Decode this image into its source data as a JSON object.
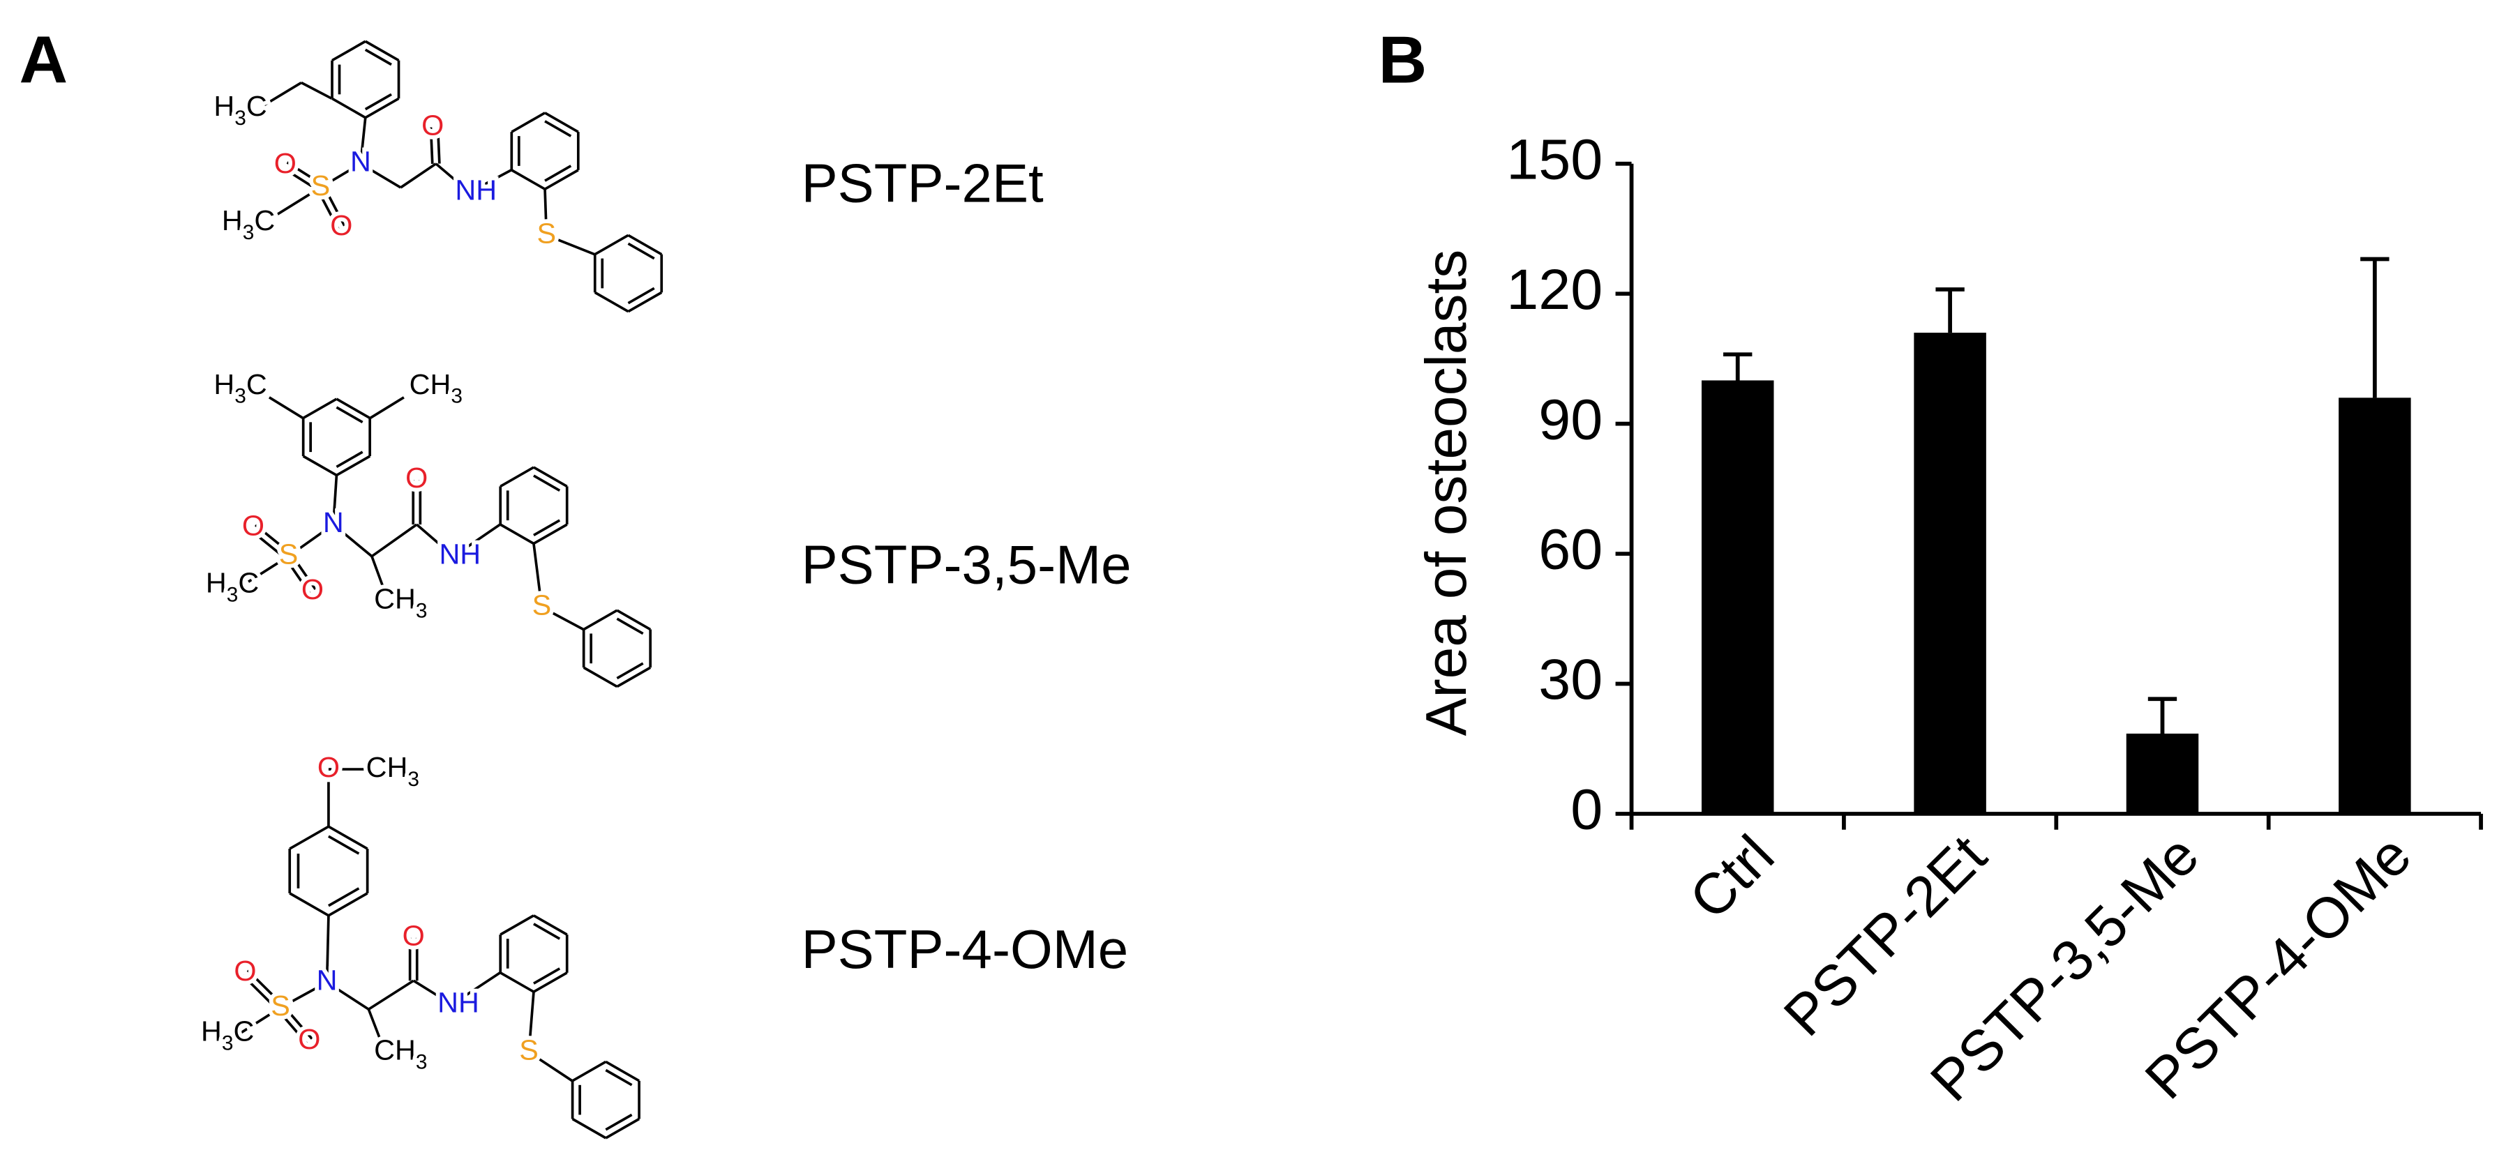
{
  "panel_a": {
    "label": "A",
    "compounds": [
      {
        "name": "PSTP-2Et",
        "atoms": [
          "H3C",
          "N",
          "O",
          "S",
          "O",
          "H3C",
          "O",
          "NH",
          "S"
        ]
      },
      {
        "name": "PSTP-3,5-Me",
        "atoms": [
          "H3C",
          "CH3",
          "N",
          "O",
          "S",
          "O",
          "H3C",
          "CH3",
          "O",
          "NH",
          "S"
        ]
      },
      {
        "name": "PSTP-4-OMe",
        "atoms": [
          "O",
          "CH3",
          "N",
          "O",
          "S",
          "O",
          "H3C",
          "CH3",
          "O",
          "NH",
          "S"
        ]
      }
    ]
  },
  "chart_data": {
    "type": "bar",
    "panel_label": "B",
    "y_label": "Area of osteoclasts",
    "categories": [
      "Ctrl",
      "PSTP-2Et",
      "PSTP-3,5-Me",
      "PSTP-4-OMe"
    ],
    "values": [
      100,
      111,
      18.5,
      96
    ],
    "errors": [
      6,
      10,
      8,
      32
    ],
    "color": "#000000",
    "ylim": [
      0,
      150
    ],
    "yticks": [
      0,
      30,
      60,
      90,
      120,
      150
    ]
  }
}
